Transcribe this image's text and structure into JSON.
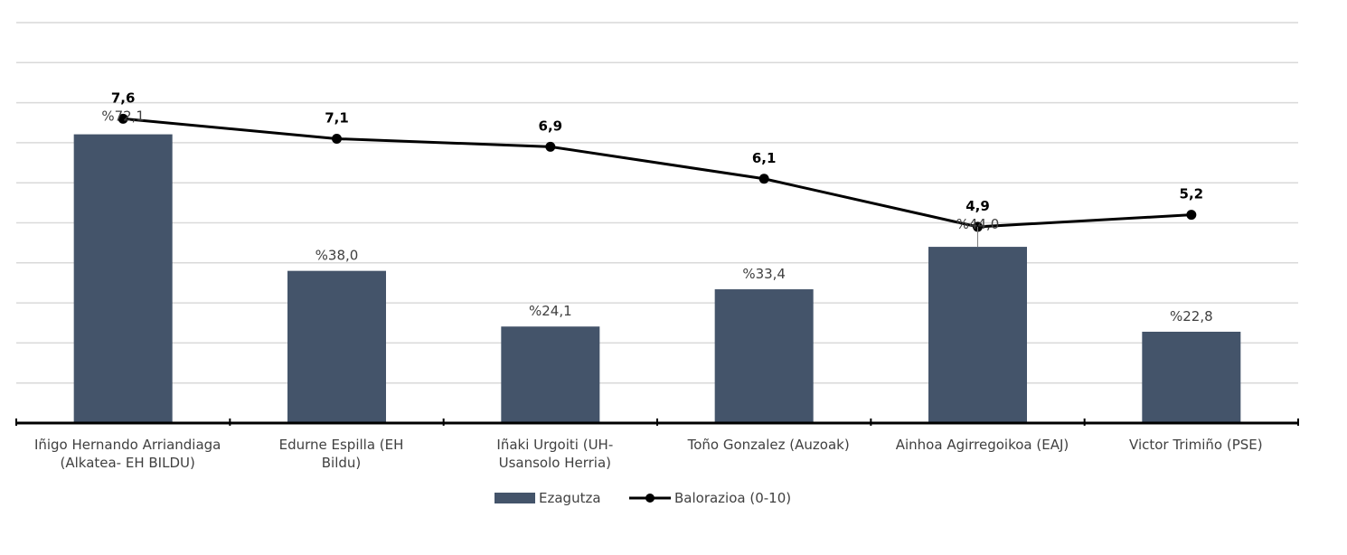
{
  "chart_data": {
    "type": "bar",
    "categories": [
      [
        "Iñigo Hernando Arriandiaga",
        "(Alkatea- EH BILDU)"
      ],
      [
        "Edurne Espilla          (EH",
        "Bildu)"
      ],
      [
        "Iñaki Urgoiti             (UH-",
        "Usansolo Herria)"
      ],
      [
        "Toño Gonzalez (Auzoak)"
      ],
      [
        "Ainhoa Agirregoikoa (EAJ)"
      ],
      [
        "Victor Trimiño (PSE)"
      ]
    ],
    "series": [
      {
        "name": "Ezagutza",
        "type": "bar",
        "values": [
          72.1,
          38.0,
          24.1,
          33.4,
          44.0,
          22.8
        ],
        "labels": [
          "%72,1",
          "%38,0",
          "%24,1",
          "%33,4",
          "%44,0",
          "%22,8"
        ],
        "color": "#44546a"
      },
      {
        "name": "Balorazioa (0-10)",
        "type": "line",
        "values": [
          7.6,
          7.1,
          6.9,
          6.1,
          4.9,
          5.2
        ],
        "labels": [
          "7,6",
          "7,1",
          "6,9",
          "6,1",
          "4,9",
          "5,2"
        ],
        "color": "#000000"
      }
    ],
    "bar_axis_range": [
      0,
      100
    ],
    "line_axis_range": [
      0,
      10
    ],
    "grid": true,
    "legend_position": "bottom"
  }
}
